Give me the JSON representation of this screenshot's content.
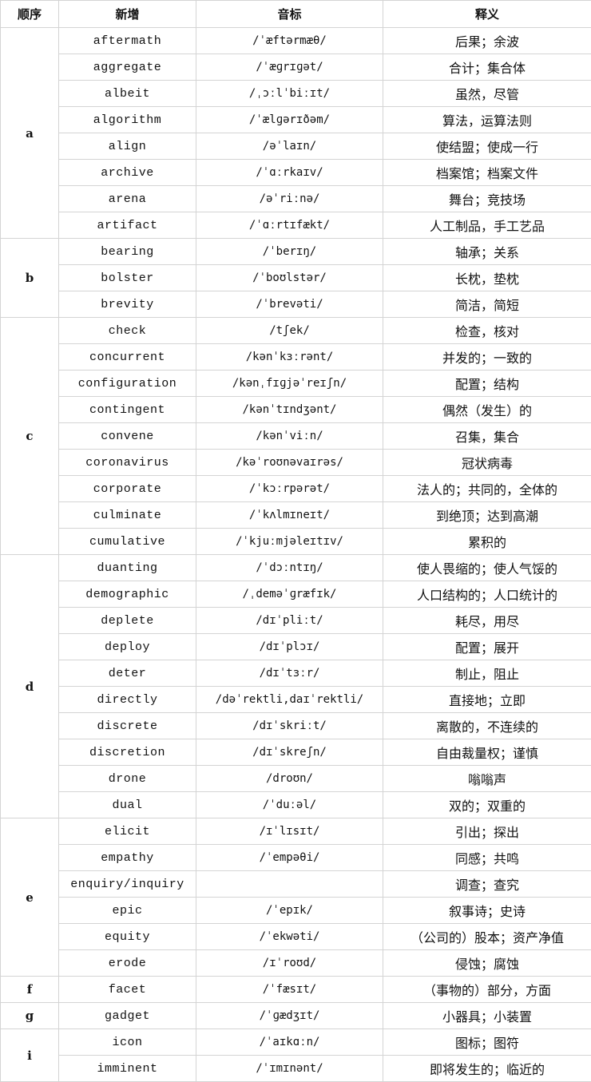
{
  "header": {
    "order": "顺序",
    "word": "新增",
    "phonetic": "音标",
    "meaning": "释义"
  },
  "groups": [
    {
      "letter": "a",
      "rows": [
        {
          "word": "aftermath",
          "phonetic": "/ˈæftərmæθ/",
          "meaning": "后果；余波"
        },
        {
          "word": "aggregate",
          "phonetic": "/ˈæɡrɪɡət/",
          "meaning": "合计；集合体"
        },
        {
          "word": "albeit",
          "phonetic": "/ˌɔːlˈbiːɪt/",
          "meaning": "虽然，尽管"
        },
        {
          "word": "algorithm",
          "phonetic": "/ˈælɡərɪðəm/",
          "meaning": "算法，运算法则"
        },
        {
          "word": "align",
          "phonetic": "/əˈlaɪn/",
          "meaning": "使结盟；使成一行"
        },
        {
          "word": "archive",
          "phonetic": "/ˈɑːrkaɪv/",
          "meaning": "档案馆；档案文件"
        },
        {
          "word": "arena",
          "phonetic": "/əˈriːnə/",
          "meaning": "舞台；竞技场"
        },
        {
          "word": "artifact",
          "phonetic": "/ˈɑːrtɪfækt/",
          "meaning": "人工制品，手工艺品"
        }
      ]
    },
    {
      "letter": "b",
      "rows": [
        {
          "word": "bearing",
          "phonetic": "/ˈberɪŋ/",
          "meaning": "轴承；关系"
        },
        {
          "word": "bolster",
          "phonetic": "/ˈboʊlstər/",
          "meaning": "长枕，垫枕"
        },
        {
          "word": "brevity",
          "phonetic": "/ˈbrevəti/",
          "meaning": "简洁，简短"
        }
      ]
    },
    {
      "letter": "c",
      "rows": [
        {
          "word": "check",
          "phonetic": "/tʃek/",
          "meaning": "检查，核对"
        },
        {
          "word": "concurrent",
          "phonetic": "/kənˈkɜːrənt/",
          "meaning": "并发的；一致的"
        },
        {
          "word": "configuration",
          "phonetic": "/kənˌfɪɡjəˈreɪʃn/",
          "meaning": "配置；结构"
        },
        {
          "word": "contingent",
          "phonetic": "/kənˈtɪndʒənt/",
          "meaning": "偶然（发生）的"
        },
        {
          "word": "convene",
          "phonetic": "/kənˈviːn/",
          "meaning": "召集，集合"
        },
        {
          "word": "coronavirus",
          "phonetic": "/kəˈroʊnəvaɪrəs/",
          "meaning": "冠状病毒"
        },
        {
          "word": "corporate",
          "phonetic": "/ˈkɔːrpərət/",
          "meaning": "法人的；共同的，全体的"
        },
        {
          "word": "culminate",
          "phonetic": "/ˈkʌlmɪneɪt/",
          "meaning": "到绝顶；达到高潮"
        },
        {
          "word": "cumulative",
          "phonetic": "/ˈkjuːmjəleɪtɪv/",
          "meaning": "累积的"
        }
      ]
    },
    {
      "letter": "d",
      "rows": [
        {
          "word": "duanting",
          "phonetic": "/ˈdɔːntɪŋ/",
          "meaning": "使人畏缩的；使人气馁的"
        },
        {
          "word": "demographic",
          "phonetic": "/ˌdeməˈɡræfɪk/",
          "meaning": "人口结构的；人口统计的"
        },
        {
          "word": "deplete",
          "phonetic": "/dɪˈpliːt/",
          "meaning": "耗尽，用尽"
        },
        {
          "word": "deploy",
          "phonetic": "/dɪˈplɔɪ/",
          "meaning": "配置；展开"
        },
        {
          "word": "deter",
          "phonetic": "/dɪˈtɜːr/",
          "meaning": "制止，阻止"
        },
        {
          "word": "directly",
          "phonetic": "/dəˈrektli,daɪˈrektli/",
          "meaning": "直接地；立即"
        },
        {
          "word": "discrete",
          "phonetic": "/dɪˈskriːt/",
          "meaning": "离散的，不连续的"
        },
        {
          "word": "discretion",
          "phonetic": "/dɪˈskreʃn/",
          "meaning": "自由裁量权；谨慎"
        },
        {
          "word": "drone",
          "phonetic": "/droʊn/",
          "meaning": "嗡嗡声"
        },
        {
          "word": "dual",
          "phonetic": "/ˈduːəl/",
          "meaning": "双的；双重的"
        }
      ]
    },
    {
      "letter": "e",
      "rows": [
        {
          "word": "elicit",
          "phonetic": "/ɪˈlɪsɪt/",
          "meaning": "引出；探出"
        },
        {
          "word": "empathy",
          "phonetic": "/ˈempəθi/",
          "meaning": "同感；共鸣"
        },
        {
          "word": "enquiry/inquiry",
          "phonetic": "",
          "meaning": "调查；查究"
        },
        {
          "word": "epic",
          "phonetic": "/ˈepɪk/",
          "meaning": "叙事诗；史诗"
        },
        {
          "word": "equity",
          "phonetic": "/ˈekwəti/",
          "meaning": "（公司的）股本；资产净值"
        },
        {
          "word": "erode",
          "phonetic": "/ɪˈroʊd/",
          "meaning": "侵蚀；腐蚀"
        }
      ]
    },
    {
      "letter": "f",
      "rows": [
        {
          "word": "facet",
          "phonetic": "/ˈfæsɪt/",
          "meaning": "（事物的）部分，方面"
        }
      ]
    },
    {
      "letter": "g",
      "rows": [
        {
          "word": "gadget",
          "phonetic": "/ˈɡædʒɪt/",
          "meaning": "小器具；小装置"
        }
      ]
    },
    {
      "letter": "i",
      "rows": [
        {
          "word": "icon",
          "phonetic": "/ˈaɪkɑːn/",
          "meaning": "图标；图符"
        },
        {
          "word": "imminent",
          "phonetic": "/ˈɪmɪnənt/",
          "meaning": "即将发生的；临近的"
        }
      ]
    }
  ]
}
